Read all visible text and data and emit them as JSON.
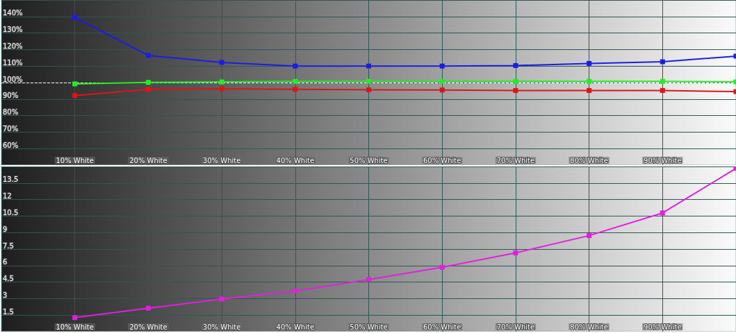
{
  "chart_data": [
    {
      "type": "line",
      "x": [
        10,
        20,
        30,
        40,
        50,
        60,
        70,
        80,
        90,
        100
      ],
      "xlim": [
        0,
        100
      ],
      "xticks": [
        {
          "value": 10,
          "label": "10% White"
        },
        {
          "value": 20,
          "label": "20% White"
        },
        {
          "value": 30,
          "label": "30% White"
        },
        {
          "value": 40,
          "label": "40% White"
        },
        {
          "value": 50,
          "label": "50% White"
        },
        {
          "value": 60,
          "label": "60% White"
        },
        {
          "value": 70,
          "label": "70% White"
        },
        {
          "value": 80,
          "label": "80% White"
        },
        {
          "value": 90,
          "label": "90% White"
        }
      ],
      "ylim": [
        50,
        150
      ],
      "yticks": [
        {
          "value": 60,
          "label": "60%"
        },
        {
          "value": 70,
          "label": "70%"
        },
        {
          "value": 80,
          "label": "80%"
        },
        {
          "value": 90,
          "label": "90%"
        },
        {
          "value": 100,
          "label": "100%"
        },
        {
          "value": 110,
          "label": "110%"
        },
        {
          "value": 120,
          "label": "120%"
        },
        {
          "value": 130,
          "label": "130%"
        },
        {
          "value": 140,
          "label": "140%"
        }
      ],
      "series": [
        {
          "color": "#1c1ce6",
          "values": [
            139.5,
            116.4,
            112.2,
            110.0,
            110.0,
            110.0,
            110.3,
            111.6,
            112.6,
            116.0
          ]
        },
        {
          "color": "#22ee22",
          "values": [
            99.2,
            100.1,
            100.4,
            100.7,
            100.7,
            100.7,
            100.7,
            100.7,
            100.7,
            100.4
          ]
        },
        {
          "color": "#e01414",
          "values": [
            92.1,
            95.9,
            96.2,
            95.9,
            95.6,
            95.5,
            95.2,
            95.2,
            95.2,
            94.5
          ]
        }
      ],
      "ref_lines": [
        {
          "axis": "y",
          "value": 100,
          "color": "#ffffff",
          "line_style": "dashed"
        }
      ],
      "marker": "square",
      "grid": true
    },
    {
      "type": "line",
      "x": [
        10,
        20,
        30,
        40,
        50,
        60,
        70,
        80,
        90,
        100
      ],
      "xlim": [
        0,
        100
      ],
      "xticks": [
        {
          "value": 10,
          "label": "10% White"
        },
        {
          "value": 20,
          "label": "20% White"
        },
        {
          "value": 30,
          "label": "30% White"
        },
        {
          "value": 40,
          "label": "40% White"
        },
        {
          "value": 50,
          "label": "50% White"
        },
        {
          "value": 60,
          "label": "60% White"
        },
        {
          "value": 70,
          "label": "70% White"
        },
        {
          "value": 80,
          "label": "80% White"
        },
        {
          "value": 90,
          "label": "90% White"
        }
      ],
      "ylim": [
        0,
        15
      ],
      "yticks": [
        1.5,
        3,
        4.5,
        6,
        7.5,
        9,
        10.5,
        12,
        13.5
      ],
      "series": [
        {
          "color": "#e020e0",
          "values": [
            1.28,
            2.13,
            2.96,
            3.69,
            4.73,
            5.84,
            7.15,
            8.72,
            10.78,
            14.83
          ]
        }
      ],
      "marker": "square",
      "grid": true
    }
  ]
}
